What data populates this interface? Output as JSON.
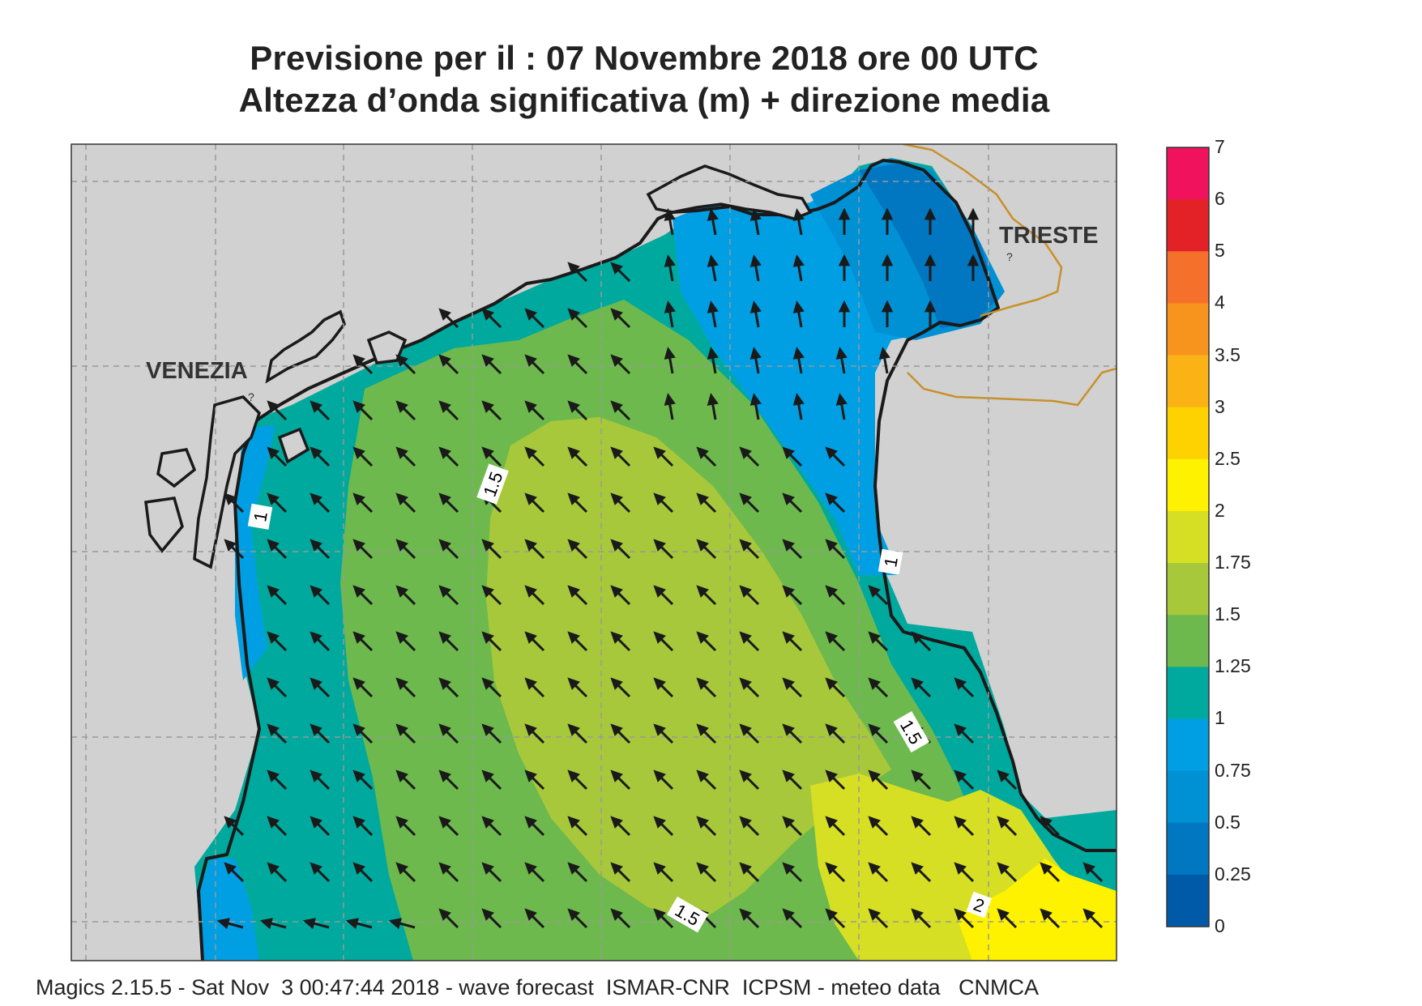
{
  "title": {
    "line1": "Previsione per il  :  07 Novembre  2018   ore 00 UTC",
    "line2": "Altezza d’onda significativa (m) + direzione media"
  },
  "places": {
    "venezia": "VENEZIA",
    "trieste": "TRIESTE",
    "unknown_marker": "?"
  },
  "contours": [
    "1",
    "1",
    "1.5",
    "1.5",
    "1.5",
    "2"
  ],
  "colorbar": {
    "labels": [
      "7",
      "6",
      "5",
      "4",
      "3.5",
      "3",
      "2.5",
      "2",
      "1.75",
      "1.5",
      "1.25",
      "1",
      "0.75",
      "0.5",
      "0.25",
      "0"
    ],
    "colors": [
      "#f0125c",
      "#e32228",
      "#f5712b",
      "#f7941d",
      "#fbb215",
      "#fed100",
      "#fff200",
      "#d6df23",
      "#a8c83b",
      "#6eb94d",
      "#00a99d",
      "#009fe3",
      "#0090d4",
      "#0077c0",
      "#005aa7"
    ]
  },
  "footer": "Magics 2.15.5 - Sat Nov  3 00:47:44 2018 - wave forecast  ISMAR-CNR  ICPSM - meteo data   CNMCA"
}
